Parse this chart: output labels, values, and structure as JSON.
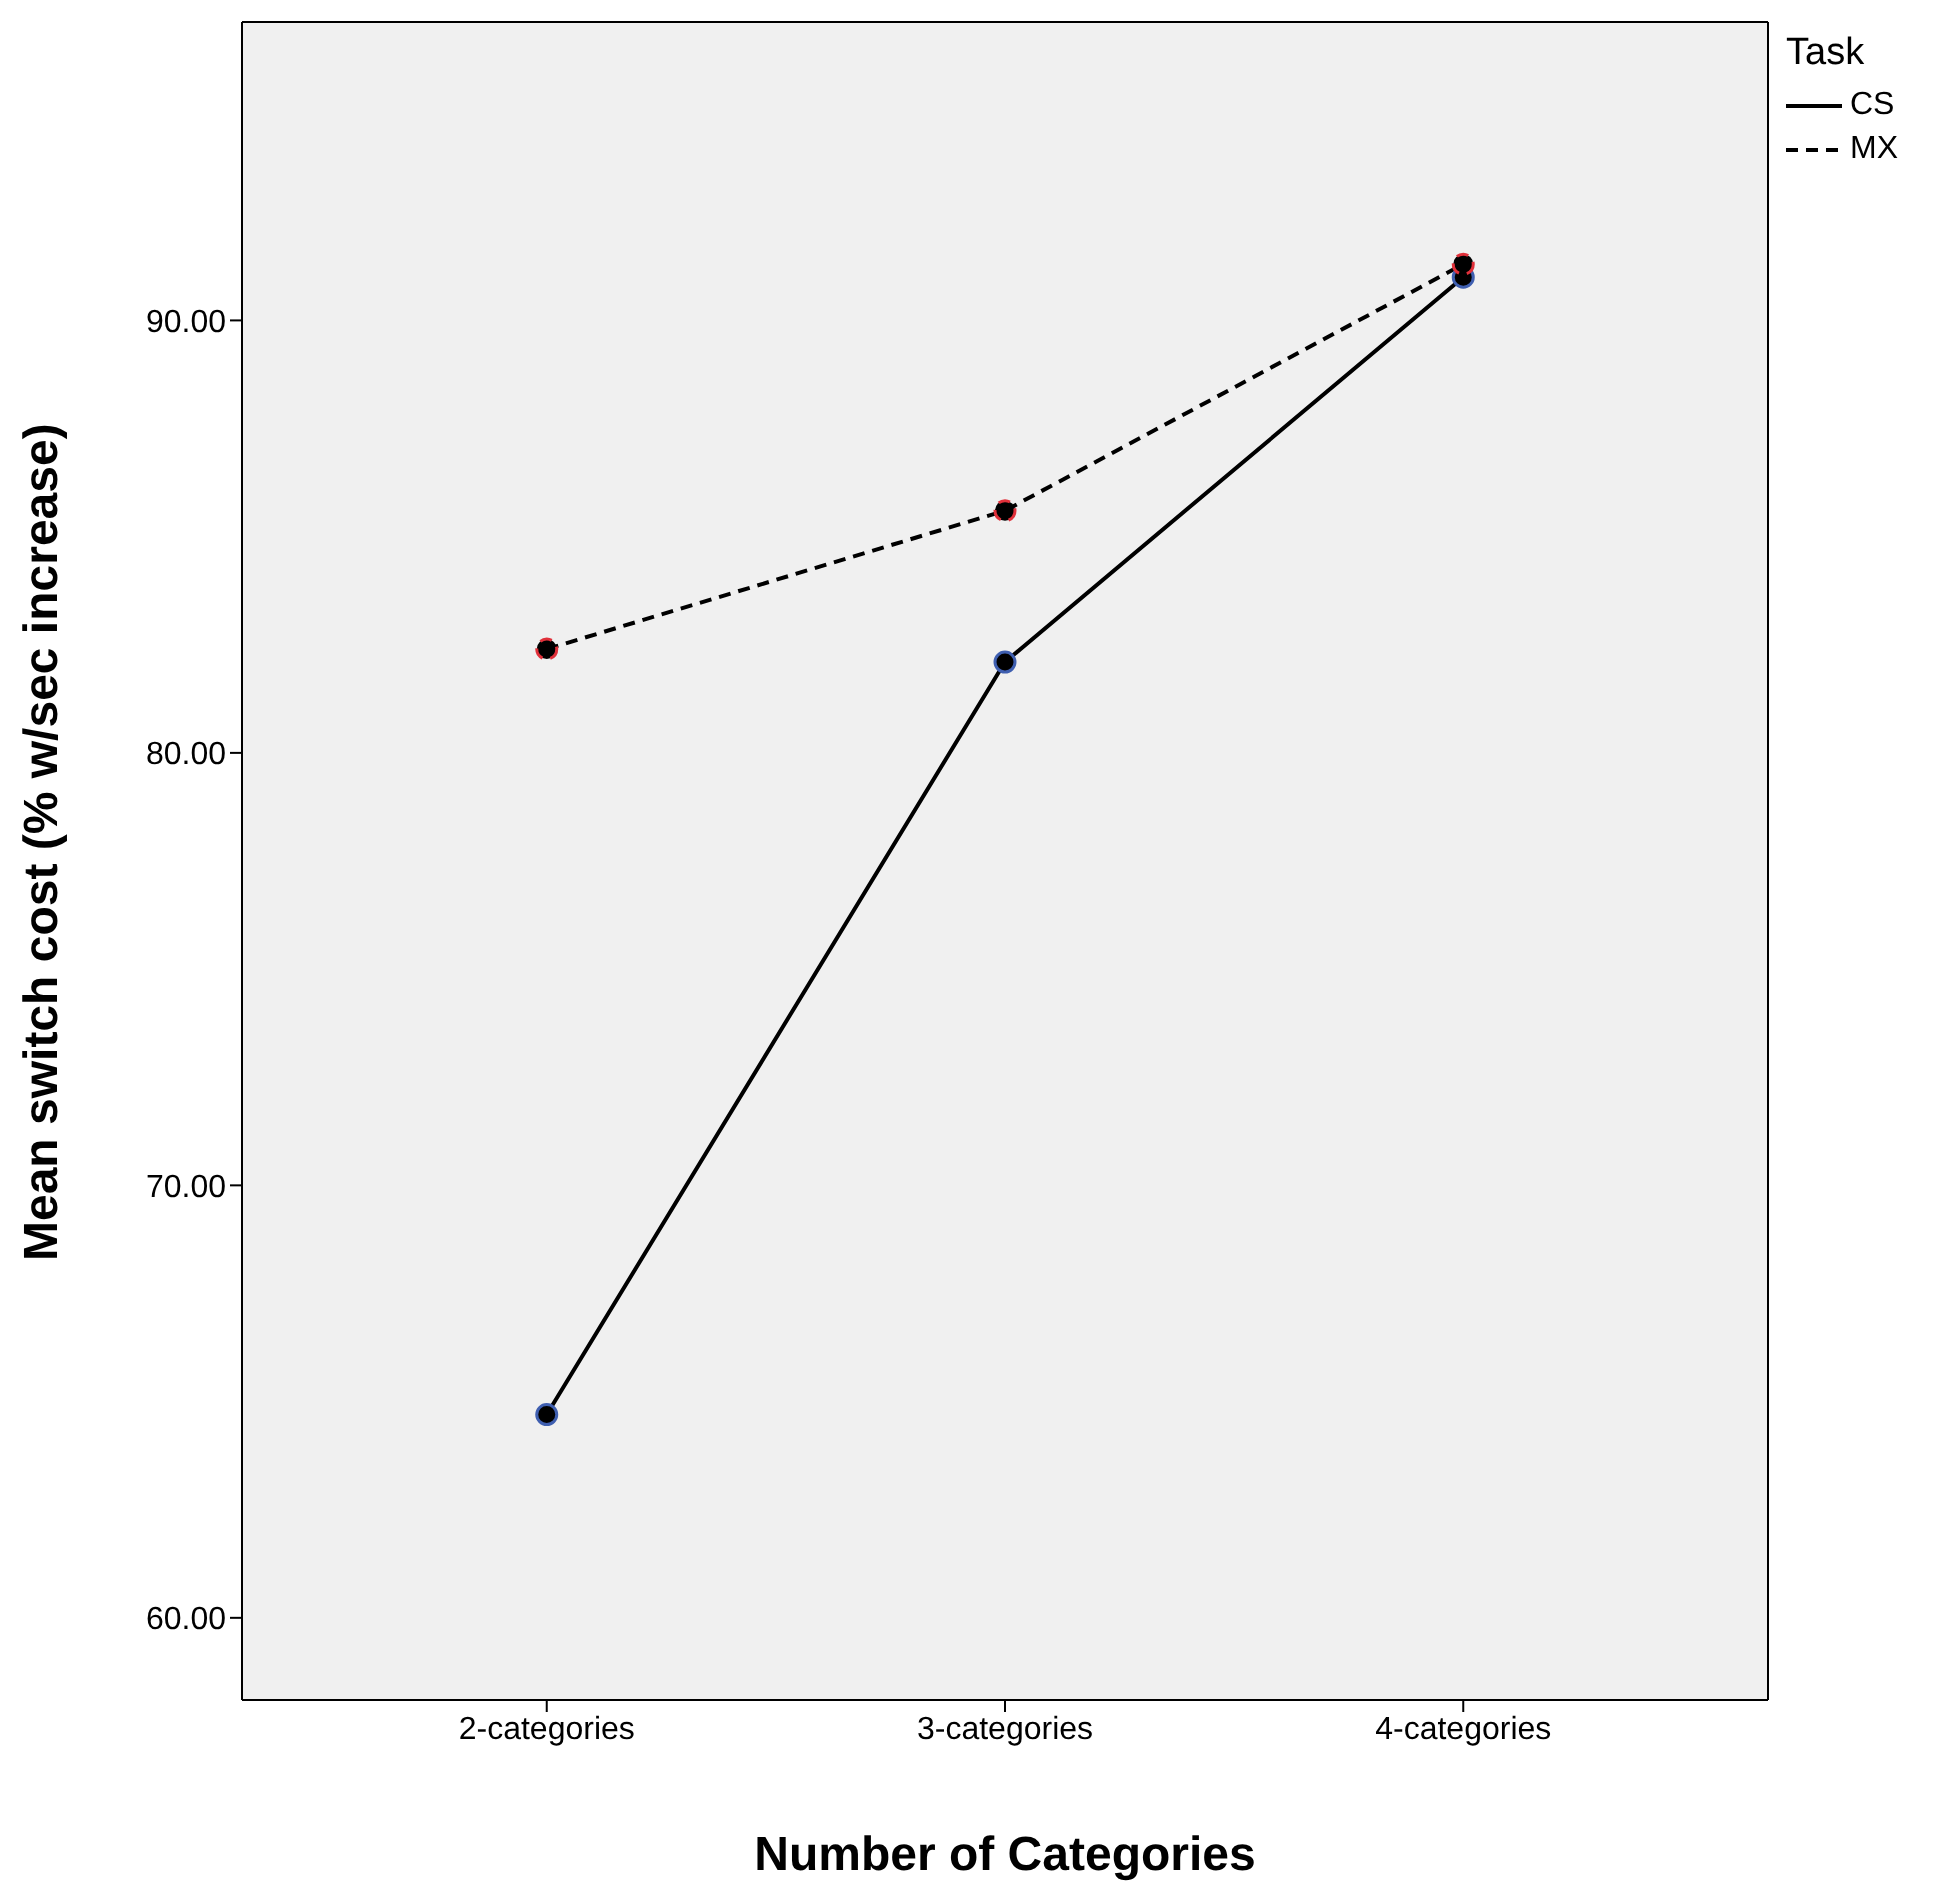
{
  "chart_data": {
    "type": "line",
    "xlabel": "Number of Categories",
    "ylabel": "Mean switch cost (% w/sec increase)",
    "legend_title": "Task",
    "categories": [
      "2-categories",
      "3-categories",
      "4-categories"
    ],
    "series": [
      {
        "name": "CS",
        "color": "#000000",
        "values": [
          64.7,
          82.1,
          91.0
        ],
        "line_style": "solid"
      },
      {
        "name": "MX",
        "color": "#000000",
        "values": [
          82.4,
          85.6,
          91.3
        ],
        "line_style": "dashed"
      }
    ],
    "ylim": [
      58.1,
      96.9
    ],
    "yticks": [
      {
        "value": 60,
        "label": "60.00"
      },
      {
        "value": 70,
        "label": "70.00"
      },
      {
        "value": 80,
        "label": "80.00"
      },
      {
        "value": 90,
        "label": "90.00"
      }
    ],
    "grid": false,
    "legend": "top right",
    "marker": "circle"
  }
}
